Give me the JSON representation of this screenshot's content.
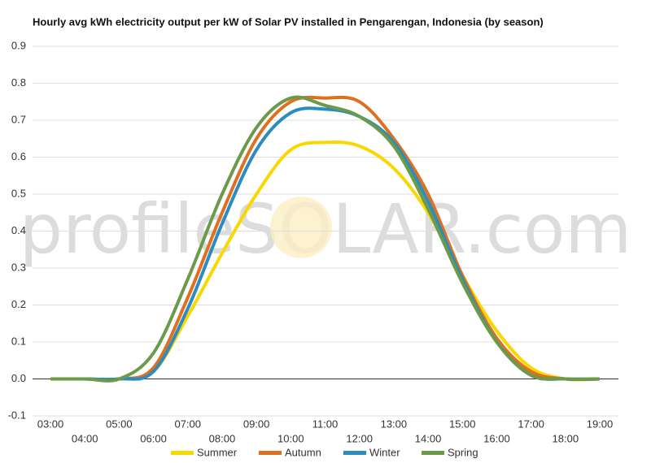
{
  "chart_data": {
    "type": "line",
    "title": "Hourly avg kWh electricity output per kW of Solar PV installed in Pengarengan, Indonesia (by season)",
    "watermark": "profileSOLAR.com",
    "categories": [
      "03:00",
      "04:00",
      "05:00",
      "06:00",
      "07:00",
      "08:00",
      "09:00",
      "10:00",
      "11:00",
      "12:00",
      "13:00",
      "14:00",
      "15:00",
      "16:00",
      "17:00",
      "18:00",
      "19:00"
    ],
    "series": [
      {
        "name": "Summer",
        "color": "#f8d800",
        "values": [
          0,
          0,
          0,
          0.02,
          0.17,
          0.34,
          0.5,
          0.62,
          0.64,
          0.63,
          0.57,
          0.45,
          0.28,
          0.13,
          0.03,
          0,
          0
        ]
      },
      {
        "name": "Autumn",
        "color": "#e07020",
        "values": [
          0,
          0,
          0,
          0.03,
          0.22,
          0.45,
          0.65,
          0.75,
          0.76,
          0.75,
          0.65,
          0.5,
          0.28,
          0.11,
          0.02,
          0,
          0
        ]
      },
      {
        "name": "Winter",
        "color": "#2a8cc0",
        "values": [
          0,
          0,
          0,
          0.02,
          0.19,
          0.42,
          0.62,
          0.72,
          0.73,
          0.71,
          0.64,
          0.48,
          0.27,
          0.1,
          0.01,
          0,
          0
        ]
      },
      {
        "name": "Spring",
        "color": "#6a9a4a",
        "values": [
          0,
          0,
          0,
          0.07,
          0.27,
          0.5,
          0.68,
          0.76,
          0.74,
          0.71,
          0.63,
          0.46,
          0.26,
          0.1,
          0.01,
          0,
          0
        ]
      }
    ],
    "ylim": [
      -0.1,
      0.9
    ],
    "yticks": [
      -0.1,
      {
        "value": 0,
        "label": "0.0"
      },
      0.1,
      0.2,
      0.3,
      0.4,
      0.5,
      0.6,
      0.7,
      0.8,
      0.9
    ],
    "grid": true
  }
}
